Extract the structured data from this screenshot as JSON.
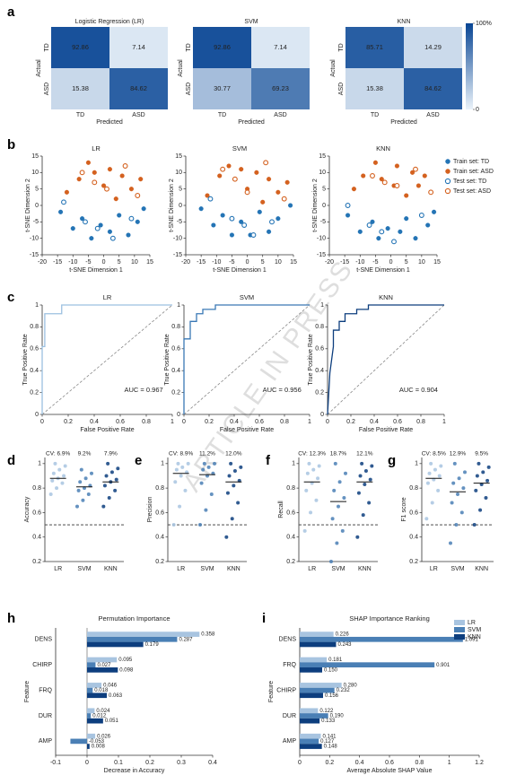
{
  "panel_labels": [
    "a",
    "b",
    "c",
    "d",
    "e",
    "f",
    "g",
    "h",
    "i"
  ],
  "watermark": "ARTICLE IN PRESS",
  "chart_data": [
    {
      "type": "heatmap",
      "title": "Logistic Regression (LR)",
      "x_label": "Predicted",
      "y_label": "Actual",
      "x_categories": [
        "TD",
        "ASD"
      ],
      "y_categories": [
        "TD",
        "ASD"
      ],
      "z": [
        [
          92.86,
          7.14
        ],
        [
          15.38,
          84.62
        ]
      ],
      "zlim": [
        0,
        100
      ]
    },
    {
      "type": "heatmap",
      "title": "SVM",
      "x_label": "Predicted",
      "y_label": "Actual",
      "x_categories": [
        "TD",
        "ASD"
      ],
      "y_categories": [
        "TD",
        "ASD"
      ],
      "z": [
        [
          92.86,
          7.14
        ],
        [
          30.77,
          69.23
        ]
      ],
      "zlim": [
        0,
        100
      ]
    },
    {
      "type": "heatmap",
      "title": "KNN",
      "x_label": "Predicted",
      "y_label": "Actual",
      "x_categories": [
        "TD",
        "ASD"
      ],
      "y_categories": [
        "TD",
        "ASD"
      ],
      "z": [
        [
          85.71,
          14.29
        ],
        [
          15.38,
          84.62
        ]
      ],
      "zlim": [
        0,
        100
      ],
      "zticks": [
        {
          "value": 100,
          "label": "100%"
        },
        0
      ]
    },
    {
      "type": "scatter",
      "title": "LR",
      "x_label": "t-SNE Dimension 1",
      "y_label": "t-SNE Dimension 2",
      "xlim": [
        -20,
        15
      ],
      "ylim": [
        -15,
        15
      ],
      "xticks": [
        -20,
        -15,
        -10,
        -5,
        0,
        5,
        10,
        15
      ],
      "yticks": [
        -15,
        -10,
        -5,
        0,
        5,
        10,
        15
      ],
      "series": [
        {
          "color": "#2474b5",
          "marker": "filled",
          "x": [
            -14,
            -10,
            -7,
            -4,
            -1,
            2,
            5,
            8,
            11,
            13
          ],
          "y": [
            -2,
            -7,
            -4,
            -10,
            -6,
            -8,
            -3,
            -9,
            -5,
            -1
          ]
        },
        {
          "color": "#d4611f",
          "marker": "filled",
          "x": [
            -12,
            -8,
            -5,
            -3,
            0,
            2,
            4,
            6,
            9,
            12
          ],
          "y": [
            4,
            8,
            13,
            10,
            6,
            11,
            2,
            9,
            5,
            8
          ]
        },
        {
          "color": "#2474b5",
          "marker": "hollow",
          "x": [
            -13,
            -6,
            3,
            9,
            -2
          ],
          "y": [
            1,
            -5,
            -10,
            -4,
            -7
          ]
        },
        {
          "color": "#d4611f",
          "marker": "hollow",
          "x": [
            -7,
            1,
            7,
            11,
            -3
          ],
          "y": [
            10,
            5,
            12,
            3,
            7
          ]
        }
      ]
    },
    {
      "type": "scatter",
      "title": "SVM",
      "x_label": "t-SNE Dimension 1",
      "y_label": "t-SNE Dimension 2",
      "xlim": [
        -20,
        15
      ],
      "ylim": [
        -15,
        15
      ],
      "xticks": [
        -20,
        -15,
        -10,
        -5,
        0,
        5,
        10,
        15
      ],
      "yticks": [
        -15,
        -10,
        -5,
        0,
        5,
        10,
        15
      ],
      "series": [
        {
          "color": "#2474b5",
          "marker": "filled",
          "x": [
            -15,
            -11,
            -8,
            -5,
            -2,
            1,
            4,
            7,
            10,
            14
          ],
          "y": [
            -1,
            -6,
            -3,
            -9,
            -5,
            -9,
            -2,
            -8,
            -4,
            0
          ]
        },
        {
          "color": "#d4611f",
          "marker": "filled",
          "x": [
            -13,
            -9,
            -6,
            -2,
            0,
            3,
            5,
            7,
            10,
            13
          ],
          "y": [
            3,
            9,
            12,
            11,
            5,
            10,
            1,
            8,
            4,
            7
          ]
        },
        {
          "color": "#2474b5",
          "marker": "hollow",
          "x": [
            -12,
            -5,
            2,
            8,
            -1
          ],
          "y": [
            2,
            -4,
            -9,
            -5,
            -6
          ]
        },
        {
          "color": "#d4611f",
          "marker": "hollow",
          "x": [
            -8,
            0,
            6,
            12,
            -4
          ],
          "y": [
            11,
            4,
            13,
            2,
            8
          ]
        }
      ]
    },
    {
      "type": "scatter",
      "title": "KNN",
      "x_label": "t-SNE Dimension 1",
      "y_label": "t-SNE Dimension 2",
      "xlim": [
        -20,
        15
      ],
      "ylim": [
        -15,
        15
      ],
      "xticks": [
        -20,
        -15,
        -10,
        -5,
        0,
        5,
        10,
        15
      ],
      "yticks": [
        -15,
        -10,
        -5,
        0,
        5,
        10,
        15
      ],
      "legend": "right",
      "series": [
        {
          "name": "Train set: TD",
          "color": "#2474b5",
          "marker": "filled",
          "x": [
            -14,
            -10,
            -6,
            -4,
            -1,
            3,
            5,
            8,
            12,
            14
          ],
          "y": [
            -3,
            -8,
            -5,
            -10,
            -7,
            -8,
            -4,
            -10,
            -6,
            -2
          ]
        },
        {
          "name": "Train set: ASD",
          "color": "#d4611f",
          "marker": "filled",
          "x": [
            -12,
            -9,
            -5,
            -3,
            1,
            2,
            5,
            7,
            9,
            11
          ],
          "y": [
            5,
            9,
            13,
            8,
            6,
            12,
            3,
            10,
            6,
            9
          ]
        },
        {
          "name": "Test set: TD",
          "color": "#2474b5",
          "marker": "hollow",
          "x": [
            -14,
            -7,
            1,
            10,
            -3
          ],
          "y": [
            0,
            -6,
            -11,
            -3,
            -8
          ]
        },
        {
          "name": "Test set: ASD",
          "color": "#d4611f",
          "marker": "hollow",
          "x": [
            -6,
            2,
            8,
            13,
            -2
          ],
          "y": [
            9,
            6,
            11,
            4,
            7
          ]
        }
      ]
    },
    {
      "type": "line",
      "title": "LR",
      "x_label": "False Positive Rate",
      "y_label": "True Positive Rate",
      "xlim": [
        0,
        1
      ],
      "ylim": [
        0,
        1
      ],
      "xticks": [
        0,
        0.2,
        0.4,
        0.6,
        0.8,
        1
      ],
      "yticks": [
        0,
        0.2,
        0.4,
        0.6,
        0.8,
        1
      ],
      "color": "#9cc0e0",
      "annotation": "AUC = 0.967",
      "x": [
        0,
        0,
        0.02,
        0.02,
        0.15,
        0.15,
        1
      ],
      "y": [
        0,
        0.62,
        0.62,
        0.92,
        0.92,
        1,
        1
      ]
    },
    {
      "type": "line",
      "title": "SVM",
      "x_label": "False Positive Rate",
      "y_label": "True Positive Rate",
      "xlim": [
        0,
        1
      ],
      "ylim": [
        0,
        1
      ],
      "xticks": [
        0,
        0.2,
        0.4,
        0.6,
        0.8,
        1
      ],
      "yticks": [
        0,
        0.2,
        0.4,
        0.6,
        0.8,
        1
      ],
      "color": "#3a78b5",
      "annotation": "AUC = 0.956",
      "x": [
        0,
        0,
        0.05,
        0.05,
        0.1,
        0.1,
        0.15,
        0.15,
        0.25,
        0.25,
        1
      ],
      "y": [
        0,
        0.69,
        0.69,
        0.85,
        0.85,
        0.92,
        0.92,
        0.96,
        0.96,
        1,
        1
      ]
    },
    {
      "type": "line",
      "title": "KNN",
      "x_label": "False Positive Rate",
      "y_label": "True Positive Rate",
      "xlim": [
        0,
        1
      ],
      "ylim": [
        0,
        1
      ],
      "xticks": [
        0,
        0.2,
        0.4,
        0.6,
        0.8,
        1
      ],
      "yticks": [
        0,
        0.2,
        0.4,
        0.6,
        0.8,
        1
      ],
      "color": "#0d3e7e",
      "annotation": "AUC = 0.904",
      "x": [
        0,
        0.02,
        0.05,
        0.05,
        0.1,
        0.1,
        0.15,
        0.15,
        0.25,
        0.25,
        0.35,
        0.35,
        1
      ],
      "y": [
        0,
        0.38,
        0.62,
        0.77,
        0.77,
        0.85,
        0.85,
        0.92,
        0.92,
        0.96,
        0.96,
        1,
        1
      ]
    },
    {
      "type": "strip",
      "y_label": "Accuracy",
      "categories": [
        "LR",
        "SVM",
        "KNN"
      ],
      "annotations": [
        "CV: 6.9%",
        "9.2%",
        "7.9%"
      ],
      "ylim": [
        0.2,
        1.05
      ],
      "yticks": [
        0.2,
        0.4,
        0.6,
        0.8,
        1
      ],
      "reference": 0.5,
      "series": [
        {
          "color": "#a8c4e0",
          "mean": 0.88,
          "values": [
            0.75,
            0.8,
            0.84,
            0.86,
            0.88,
            0.9,
            0.92,
            0.95,
            0.98,
            1
          ]
        },
        {
          "color": "#4a7fb5",
          "mean": 0.81,
          "values": [
            0.65,
            0.7,
            0.75,
            0.78,
            0.8,
            0.82,
            0.85,
            0.88,
            0.92,
            0.95
          ]
        },
        {
          "color": "#0d3e7e",
          "mean": 0.85,
          "values": [
            0.65,
            0.72,
            0.78,
            0.82,
            0.85,
            0.87,
            0.9,
            0.93,
            0.96,
            1
          ]
        }
      ]
    },
    {
      "type": "strip",
      "y_label": "Precision",
      "categories": [
        "LR",
        "SVM",
        "KNN"
      ],
      "annotations": [
        "CV: 8.9%",
        "11.2%",
        "12.0%"
      ],
      "ylim": [
        0.2,
        1.05
      ],
      "yticks": [
        0.2,
        0.4,
        0.6,
        0.8,
        1
      ],
      "reference": 0.5,
      "series": [
        {
          "color": "#a8c4e0",
          "mean": 0.92,
          "values": [
            0.5,
            0.65,
            0.78,
            0.85,
            0.9,
            0.93,
            0.95,
            0.97,
            1,
            1
          ]
        },
        {
          "color": "#4a7fb5",
          "mean": 0.91,
          "values": [
            0.5,
            0.62,
            0.75,
            0.84,
            0.9,
            0.92,
            0.95,
            0.97,
            1,
            1
          ]
        },
        {
          "color": "#0d3e7e",
          "mean": 0.85,
          "values": [
            0.4,
            0.55,
            0.68,
            0.76,
            0.82,
            0.86,
            0.9,
            0.94,
            0.97,
            1
          ]
        }
      ]
    },
    {
      "type": "strip",
      "y_label": "Recall",
      "categories": [
        "LR",
        "SVM",
        "KNN"
      ],
      "annotations": [
        "CV: 12.3%",
        "18.7%",
        "12.1%"
      ],
      "ylim": [
        0.2,
        1.05
      ],
      "yticks": [
        0.2,
        0.4,
        0.6,
        0.8,
        1
      ],
      "reference": 0.5,
      "series": [
        {
          "color": "#a8c4e0",
          "mean": 0.85,
          "values": [
            0.45,
            0.6,
            0.7,
            0.78,
            0.84,
            0.88,
            0.92,
            0.95,
            0.98,
            1
          ]
        },
        {
          "color": "#4a7fb5",
          "mean": 0.69,
          "values": [
            0.2,
            0.35,
            0.45,
            0.55,
            0.65,
            0.72,
            0.78,
            0.85,
            0.92,
            1
          ]
        },
        {
          "color": "#0d3e7e",
          "mean": 0.85,
          "values": [
            0.4,
            0.58,
            0.68,
            0.76,
            0.83,
            0.87,
            0.9,
            0.94,
            0.98,
            1
          ]
        }
      ]
    },
    {
      "type": "strip",
      "y_label": "F1 score",
      "categories": [
        "LR",
        "SVM",
        "KNN"
      ],
      "annotations": [
        "CV: 8.5%",
        "12.9%",
        "9.5%"
      ],
      "ylim": [
        0.2,
        1.05
      ],
      "yticks": [
        0.2,
        0.4,
        0.6,
        0.8,
        1
      ],
      "reference": 0.5,
      "series": [
        {
          "color": "#a8c4e0",
          "mean": 0.88,
          "values": [
            0.55,
            0.68,
            0.78,
            0.84,
            0.87,
            0.9,
            0.92,
            0.95,
            0.98,
            1
          ]
        },
        {
          "color": "#4a7fb5",
          "mean": 0.77,
          "values": [
            0.35,
            0.5,
            0.6,
            0.68,
            0.75,
            0.8,
            0.84,
            0.88,
            0.93,
            1
          ]
        },
        {
          "color": "#0d3e7e",
          "mean": 0.84,
          "values": [
            0.5,
            0.62,
            0.72,
            0.78,
            0.83,
            0.86,
            0.9,
            0.93,
            0.97,
            1
          ]
        }
      ]
    },
    {
      "type": "barh",
      "title": "Permutation Importance",
      "x_label": "Decrease in Accuracy",
      "y_label": "Feature",
      "categories": [
        "DENS",
        "CHIRP",
        "FRQ",
        "DUR",
        "AMP"
      ],
      "xlim": [
        -0.1,
        0.4
      ],
      "xticks": [
        -0.1,
        0,
        0.1,
        0.2,
        0.3,
        0.4
      ],
      "series": [
        {
          "color": "#a8c4e0",
          "values": [
            0.358,
            0.095,
            0.046,
            0.024,
            0.026
          ]
        },
        {
          "color": "#4a7fb5",
          "values": [
            0.287,
            0.027,
            0.018,
            0.012,
            -0.053
          ]
        },
        {
          "color": "#0d3e7e",
          "values": [
            0.179,
            0.098,
            0.063,
            0.051,
            0.008
          ]
        }
      ]
    },
    {
      "type": "barh",
      "title": "SHAP Importance Ranking",
      "x_label": "Average Absolute SHAP Value",
      "y_label": "Feature",
      "categories": [
        "DENS",
        "FRQ",
        "CHIRP",
        "DUR",
        "AMP"
      ],
      "xlim": [
        0,
        1.2
      ],
      "xticks": [
        0,
        0.2,
        0.4,
        0.6,
        0.8,
        1,
        1.2
      ],
      "legend": "upper right",
      "series": [
        {
          "name": "LR",
          "color": "#a8c4e0",
          "values": [
            0.226,
            0.181,
            0.28,
            0.122,
            0.141
          ],
          "value_labels": [
            "0.226",
            "0.181",
            "0.280",
            "0.122",
            "0.141"
          ]
        },
        {
          "name": "SVM",
          "color": "#4a7fb5",
          "values": [
            1.091,
            0.901,
            0.232,
            0.19,
            0.127
          ],
          "value_labels": [
            "1.091",
            "0.901",
            "0.232",
            "0.190",
            "0.127"
          ]
        },
        {
          "name": "KNN",
          "color": "#0d3e7e",
          "values": [
            0.243,
            0.15,
            0.156,
            0.133,
            0.148
          ],
          "value_labels": [
            "0.243",
            "0.150",
            "0.156",
            "0.133",
            "0.148"
          ]
        }
      ]
    }
  ]
}
